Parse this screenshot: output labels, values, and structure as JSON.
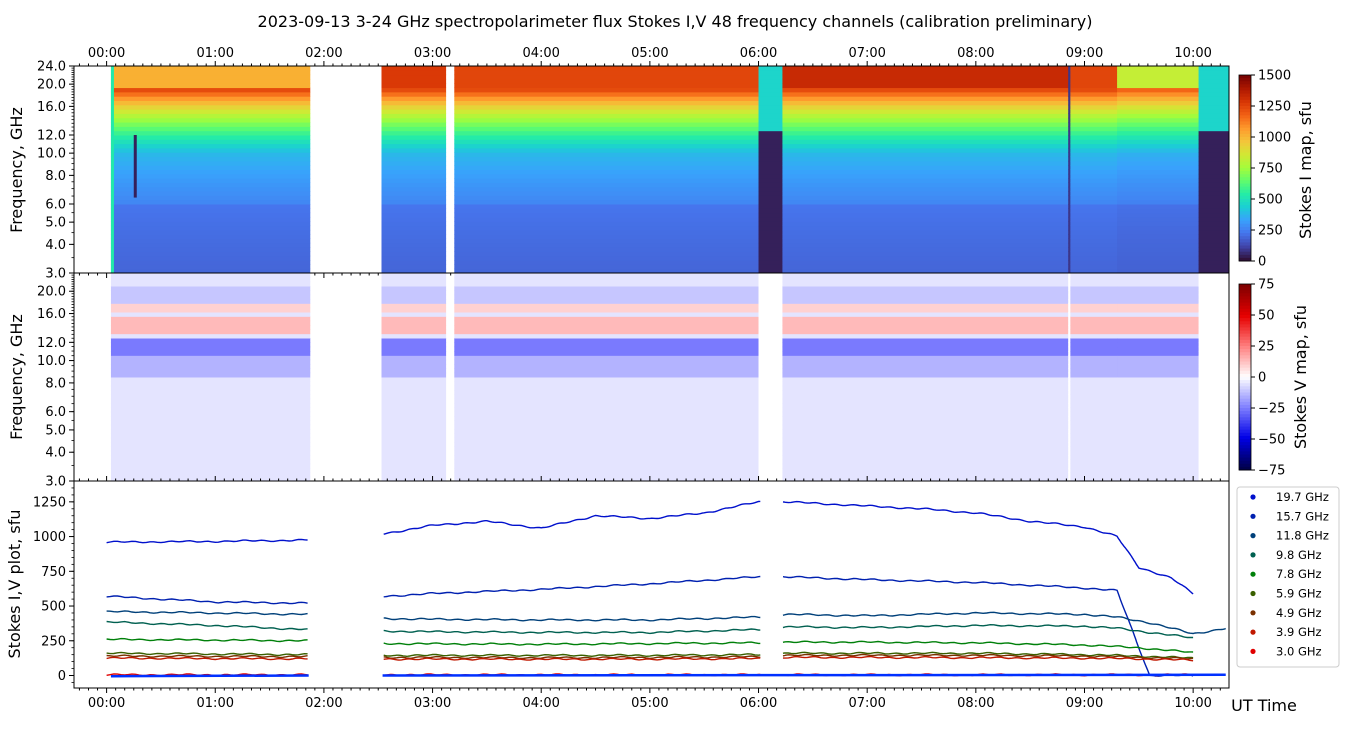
{
  "title": "2023-09-13     3-24 GHz spectropolarimeter flux   Stokes I,V   48 frequency channels   (calibration preliminary)",
  "time_ticks": [
    "00:00",
    "01:00",
    "02:00",
    "03:00",
    "04:00",
    "05:00",
    "06:00",
    "07:00",
    "08:00",
    "09:00",
    "10:00"
  ],
  "xlabel": "UT Time",
  "colors": {
    "turbo_stops": [
      "#30123b",
      "#4145ab",
      "#4675ed",
      "#39a2fc",
      "#1bcfd4",
      "#24eca6",
      "#61fc6c",
      "#a4fc3b",
      "#d1e834",
      "#f3c63a",
      "#fe9b2d",
      "#f36315",
      "#d93806",
      "#b11901",
      "#7a0402"
    ],
    "seismic_stops": [
      "#00004c",
      "#0000e6",
      "#8080ff",
      "#ffffff",
      "#ff8080",
      "#e60000",
      "#800000"
    ]
  },
  "chart_data": [
    {
      "type": "heatmap",
      "name": "stokes-i-map",
      "ylabel": "Frequency, GHz",
      "y_scale": "log",
      "ylim": [
        3.0,
        24.0
      ],
      "yticks": [
        "3.0",
        "4.0",
        "5.0",
        "6.0",
        "8.0",
        "10.0",
        "12.0",
        "16.0",
        "20.0",
        "24.0"
      ],
      "ytick_values": [
        3.0,
        4.0,
        5.0,
        6.0,
        8.0,
        10.0,
        12.0,
        16.0,
        20.0,
        24.0
      ],
      "colorbar_label": "Stokes I map, sfu",
      "colorbar_ticks": [
        "0",
        "250",
        "500",
        "750",
        "1000",
        "1250",
        "1500"
      ],
      "colorbar_values": [
        0,
        250,
        500,
        750,
        1000,
        1250,
        1500
      ],
      "data_gaps": [
        [
          "01:52",
          "02:32"
        ],
        [
          "03:07",
          "03:12"
        ]
      ]
    },
    {
      "type": "heatmap",
      "name": "stokes-v-map",
      "ylabel": "Frequency, GHz",
      "y_scale": "log",
      "ylim": [
        3.0,
        24.0
      ],
      "yticks": [
        "3.0",
        "4.0",
        "5.0",
        "6.0",
        "8.0",
        "10.0",
        "12.0",
        "16.0",
        "20.0"
      ],
      "ytick_values": [
        3.0,
        4.0,
        5.0,
        6.0,
        8.0,
        10.0,
        12.0,
        16.0,
        20.0
      ],
      "colorbar_label": "Stokes V map, sfu",
      "colorbar_ticks": [
        "75",
        "50",
        "25",
        "0",
        "−25",
        "−50",
        "−75"
      ],
      "colorbar_values": [
        75,
        50,
        25,
        0,
        -25,
        -50,
        -75
      ],
      "data_gaps": [
        [
          "01:52",
          "02:32"
        ],
        [
          "03:07",
          "03:12"
        ]
      ]
    },
    {
      "type": "scatter",
      "name": "stokes-iv-plot",
      "ylabel": "Stokes I,V plot, sfu",
      "ylim": [
        -90,
        1400
      ],
      "yticks": [
        "0",
        "250",
        "500",
        "750",
        "1000",
        "1250"
      ],
      "ytick_values": [
        0,
        250,
        500,
        750,
        1000,
        1250
      ],
      "legend_position": "outside-right",
      "series": [
        {
          "name": "19.7 GHz",
          "color": "#0010cc",
          "t": [
            0,
            1,
            1.85,
            2.55,
            3,
            3.5,
            4,
            4.5,
            5,
            5.5,
            6,
            6.25,
            7,
            7.5,
            8,
            8.5,
            9,
            9.3,
            9.5,
            9.8,
            10
          ],
          "v": [
            960,
            965,
            975,
            1020,
            1080,
            1110,
            1060,
            1150,
            1130,
            1170,
            1250,
            1250,
            1220,
            1200,
            1170,
            1110,
            1070,
            1000,
            780,
            700,
            590
          ]
        },
        {
          "name": "15.7 GHz",
          "color": "#0020b0",
          "t": [
            0,
            1,
            1.85,
            2.55,
            3,
            4,
            5,
            6,
            6.25,
            7,
            8,
            9,
            9.3,
            9.6,
            10
          ],
          "v": [
            570,
            530,
            520,
            570,
            590,
            620,
            660,
            710,
            710,
            690,
            670,
            630,
            610,
            0,
            0
          ]
        },
        {
          "name": "11.8 GHz",
          "color": "#00407a",
          "t": [
            0,
            1,
            1.85,
            2.55,
            3,
            4,
            5,
            6,
            6.25,
            7,
            8,
            9,
            9.3,
            9.6,
            10,
            10.3
          ],
          "v": [
            460,
            450,
            440,
            410,
            405,
            400,
            400,
            420,
            440,
            430,
            450,
            440,
            420,
            380,
            300,
            340
          ]
        },
        {
          "name": "9.8 GHz",
          "color": "#006050",
          "t": [
            0,
            1,
            1.85,
            2.55,
            3,
            4,
            5,
            6,
            6.25,
            7,
            8,
            9,
            9.3,
            9.6,
            10
          ],
          "v": [
            385,
            360,
            330,
            320,
            315,
            310,
            310,
            330,
            350,
            345,
            360,
            355,
            340,
            310,
            270
          ]
        },
        {
          "name": "7.8 GHz",
          "color": "#00800a",
          "t": [
            0,
            1,
            1.85,
            2.55,
            3,
            4,
            5,
            6,
            6.25,
            7,
            8,
            9,
            9.5,
            10
          ],
          "v": [
            260,
            255,
            250,
            230,
            228,
            225,
            230,
            235,
            240,
            240,
            235,
            220,
            200,
            165
          ]
        },
        {
          "name": "5.9 GHz",
          "color": "#3a6000",
          "t": [
            0,
            1,
            1.85,
            2.55,
            3,
            4,
            5,
            6,
            6.25,
            7,
            8,
            9,
            9.5,
            10
          ],
          "v": [
            160,
            155,
            150,
            145,
            145,
            145,
            145,
            150,
            160,
            160,
            160,
            150,
            140,
            125
          ]
        },
        {
          "name": "4.9 GHz",
          "color": "#7a3000",
          "t": [
            0,
            1,
            1.85,
            2.55,
            3,
            4,
            5,
            6,
            6.25,
            7,
            8,
            9,
            9.5,
            10
          ],
          "v": [
            140,
            138,
            136,
            130,
            130,
            128,
            130,
            135,
            145,
            145,
            145,
            140,
            130,
            120
          ]
        },
        {
          "name": "3.9 GHz",
          "color": "#c01800",
          "t": [
            0,
            1,
            1.85,
            2.55,
            3,
            4,
            5,
            6,
            6.25,
            7,
            8,
            9,
            9.5,
            10
          ],
          "v": [
            125,
            122,
            120,
            118,
            118,
            117,
            118,
            122,
            130,
            130,
            128,
            125,
            120,
            110
          ]
        },
        {
          "name": "3.0 GHz",
          "color": "#e00000",
          "t": [
            0,
            1,
            1.85,
            2.55,
            3,
            4,
            5,
            6,
            6.25,
            7,
            8,
            9,
            9.5,
            10
          ],
          "v": [
            5,
            5,
            5,
            5,
            5,
            5,
            5,
            5,
            5,
            5,
            5,
            5,
            5,
            5
          ]
        }
      ]
    }
  ]
}
